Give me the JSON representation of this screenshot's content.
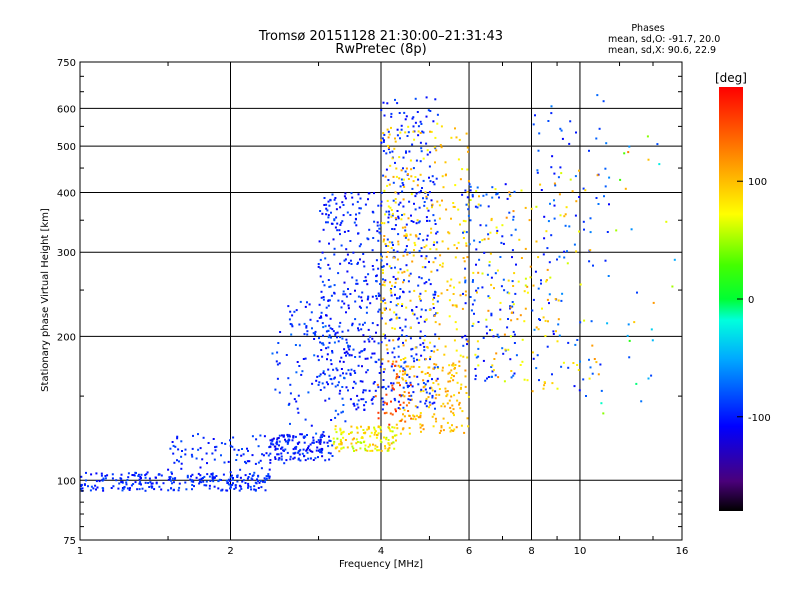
{
  "chart_data": {
    "type": "scatter",
    "title": "Tromsø 20151128 21:30:00–21:31:43",
    "subtitle": "RwPretec (8p)",
    "xlabel": "Frequency [MHz]",
    "ylabel": "Stationary phase Virtual Height [km]",
    "x_scale": "log",
    "y_scale": "log",
    "xlim": [
      1,
      16
    ],
    "ylim": [
      75,
      750
    ],
    "x_ticks": [
      1,
      2,
      4,
      6,
      8,
      10,
      16
    ],
    "x_tick_labels": [
      "1",
      "2",
      "4",
      "6",
      "8",
      "10",
      "16"
    ],
    "y_ticks": [
      75,
      100,
      200,
      300,
      400,
      500,
      600,
      750
    ],
    "y_tick_labels": [
      "75",
      "100",
      "200",
      "300",
      "400",
      "500",
      "600",
      "750"
    ],
    "grid": true,
    "stats": {
      "heading": "Phases",
      "o_line": "mean, sd,O: -91.7, 20.0",
      "x_line": "mean, sd,X:  90.6, 22.9"
    },
    "colorbar": {
      "label": "[deg]",
      "min": -180,
      "max": 180,
      "ticks": [
        100,
        0,
        -100
      ],
      "tick_labels": [
        "100",
        "0",
        "-100"
      ],
      "colormap": "rainbow"
    },
    "clusters": [
      {
        "x": [
          1.0,
          2.4
        ],
        "y": [
          95,
          104
        ],
        "phase": [
          -110,
          -80
        ],
        "count": 260
      },
      {
        "x": [
          1.5,
          2.6
        ],
        "y": [
          105,
          125
        ],
        "phase": [
          -110,
          -80
        ],
        "count": 90
      },
      {
        "x": [
          2.4,
          3.2
        ],
        "y": [
          110,
          125
        ],
        "phase": [
          -120,
          -80
        ],
        "count": 150
      },
      {
        "x": [
          3.2,
          4.3
        ],
        "y": [
          115,
          130
        ],
        "phase": [
          50,
          110
        ],
        "count": 130
      },
      {
        "x": [
          4.3,
          6.0
        ],
        "y": [
          125,
          175
        ],
        "phase": [
          80,
          120
        ],
        "count": 160
      },
      {
        "x": [
          2.4,
          3.4
        ],
        "y": [
          125,
          215
        ],
        "phase": [
          -110,
          -70
        ],
        "count": 90
      },
      {
        "x": [
          3.0,
          4.0
        ],
        "y": [
          140,
          400
        ],
        "phase": [
          -115,
          -80
        ],
        "count": 340
      },
      {
        "x": [
          4.0,
          5.2
        ],
        "y": [
          140,
          640
        ],
        "phase": [
          -110,
          -80
        ],
        "count": 360
      },
      {
        "x": [
          4.0,
          6.0
        ],
        "y": [
          170,
          560
        ],
        "phase": [
          70,
          115
        ],
        "count": 280
      },
      {
        "x": [
          3.9,
          4.6
        ],
        "y": [
          130,
          180
        ],
        "phase": [
          130,
          165
        ],
        "count": 40
      },
      {
        "x": [
          5.8,
          7.5
        ],
        "y": [
          160,
          420
        ],
        "phase": [
          -110,
          -70
        ],
        "count": 130
      },
      {
        "x": [
          6.0,
          8.0
        ],
        "y": [
          160,
          420
        ],
        "phase": [
          60,
          120
        ],
        "count": 80
      },
      {
        "x": [
          8.0,
          11.5
        ],
        "y": [
          150,
          650
        ],
        "phase": [
          -110,
          -60
        ],
        "count": 110
      },
      {
        "x": [
          8.0,
          11.0
        ],
        "y": [
          150,
          450
        ],
        "phase": [
          60,
          120
        ],
        "count": 60
      },
      {
        "x": [
          11.0,
          15.5
        ],
        "y": [
          130,
          650
        ],
        "phase": [
          -120,
          140
        ],
        "count": 30
      },
      {
        "x": [
          2.6,
          3.2
        ],
        "y": [
          200,
          240
        ],
        "phase": [
          -110,
          -80
        ],
        "count": 30
      }
    ]
  }
}
